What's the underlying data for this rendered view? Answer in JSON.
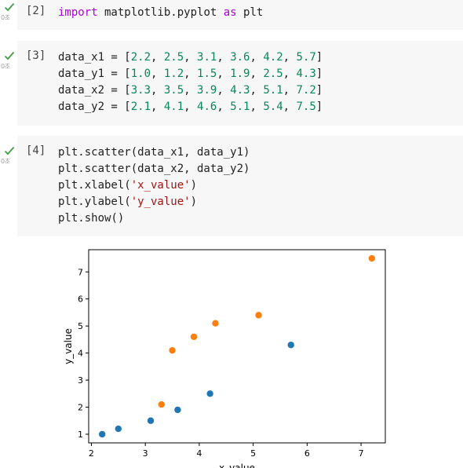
{
  "cells": [
    {
      "exec_label": "[2]",
      "time": "0초",
      "code": [
        [
          {
            "t": "import",
            "c": "kw"
          },
          {
            "t": " matplotlib.pyplot "
          },
          {
            "t": "as",
            "c": "kw"
          },
          {
            "t": " plt"
          }
        ]
      ]
    },
    {
      "exec_label": "[3]",
      "time": "0초",
      "code": [
        [
          {
            "t": "data_x1 = ["
          },
          {
            "t": "2.2",
            "c": "num"
          },
          {
            "t": ", "
          },
          {
            "t": "2.5",
            "c": "num"
          },
          {
            "t": ", "
          },
          {
            "t": "3.1",
            "c": "num"
          },
          {
            "t": ", "
          },
          {
            "t": "3.6",
            "c": "num"
          },
          {
            "t": ", "
          },
          {
            "t": "4.2",
            "c": "num"
          },
          {
            "t": ", "
          },
          {
            "t": "5.7",
            "c": "num"
          },
          {
            "t": "]"
          }
        ],
        [
          {
            "t": "data_y1 = ["
          },
          {
            "t": "1.0",
            "c": "num"
          },
          {
            "t": ", "
          },
          {
            "t": "1.2",
            "c": "num"
          },
          {
            "t": ", "
          },
          {
            "t": "1.5",
            "c": "num"
          },
          {
            "t": ", "
          },
          {
            "t": "1.9",
            "c": "num"
          },
          {
            "t": ", "
          },
          {
            "t": "2.5",
            "c": "num"
          },
          {
            "t": ", "
          },
          {
            "t": "4.3",
            "c": "num"
          },
          {
            "t": "]"
          }
        ],
        [
          {
            "t": "data_x2 = ["
          },
          {
            "t": "3.3",
            "c": "num"
          },
          {
            "t": ", "
          },
          {
            "t": "3.5",
            "c": "num"
          },
          {
            "t": ", "
          },
          {
            "t": "3.9",
            "c": "num"
          },
          {
            "t": ", "
          },
          {
            "t": "4.3",
            "c": "num"
          },
          {
            "t": ", "
          },
          {
            "t": "5.1",
            "c": "num"
          },
          {
            "t": ", "
          },
          {
            "t": "7.2",
            "c": "num"
          },
          {
            "t": "]"
          }
        ],
        [
          {
            "t": "data_y2 = ["
          },
          {
            "t": "2.1",
            "c": "num"
          },
          {
            "t": ", "
          },
          {
            "t": "4.1",
            "c": "num"
          },
          {
            "t": ", "
          },
          {
            "t": "4.6",
            "c": "num"
          },
          {
            "t": ", "
          },
          {
            "t": "5.1",
            "c": "num"
          },
          {
            "t": ", "
          },
          {
            "t": "5.4",
            "c": "num"
          },
          {
            "t": ", "
          },
          {
            "t": "7.5",
            "c": "num"
          },
          {
            "t": "]"
          }
        ]
      ]
    },
    {
      "exec_label": "[4]",
      "time": "0초",
      "code": [
        [
          {
            "t": "plt.scatter(data_x1, data_y1)"
          }
        ],
        [
          {
            "t": "plt.scatter(data_x2, data_y2)"
          }
        ],
        [
          {
            "t": "plt.xlabel("
          },
          {
            "t": "'x_value'",
            "c": "str"
          },
          {
            "t": ")"
          }
        ],
        [
          {
            "t": "plt.ylabel("
          },
          {
            "t": "'y_value'",
            "c": "str"
          },
          {
            "t": ")"
          }
        ],
        [
          {
            "t": "plt.show()"
          }
        ]
      ]
    }
  ],
  "colors": {
    "check": "#43a047",
    "series1": "#1f77b4",
    "series2": "#ff7f0e"
  },
  "icons": {
    "run_status": "check-icon"
  },
  "chart_data": {
    "type": "scatter",
    "title": "",
    "xlabel": "x_value",
    "ylabel": "y_value",
    "xlim": [
      1.95,
      7.45
    ],
    "ylim": [
      0.68,
      7.82
    ],
    "xticks": [
      2,
      3,
      4,
      5,
      6,
      7
    ],
    "yticks": [
      1,
      2,
      3,
      4,
      5,
      6,
      7
    ],
    "grid": false,
    "series": [
      {
        "x": [
          2.2,
          2.5,
          3.1,
          3.6,
          4.2,
          5.7
        ],
        "y": [
          1.0,
          1.2,
          1.5,
          1.9,
          2.5,
          4.3
        ]
      },
      {
        "x": [
          3.3,
          3.5,
          3.9,
          4.3,
          5.1,
          7.2
        ],
        "y": [
          2.1,
          4.1,
          4.6,
          5.1,
          5.4,
          7.5
        ]
      }
    ]
  }
}
